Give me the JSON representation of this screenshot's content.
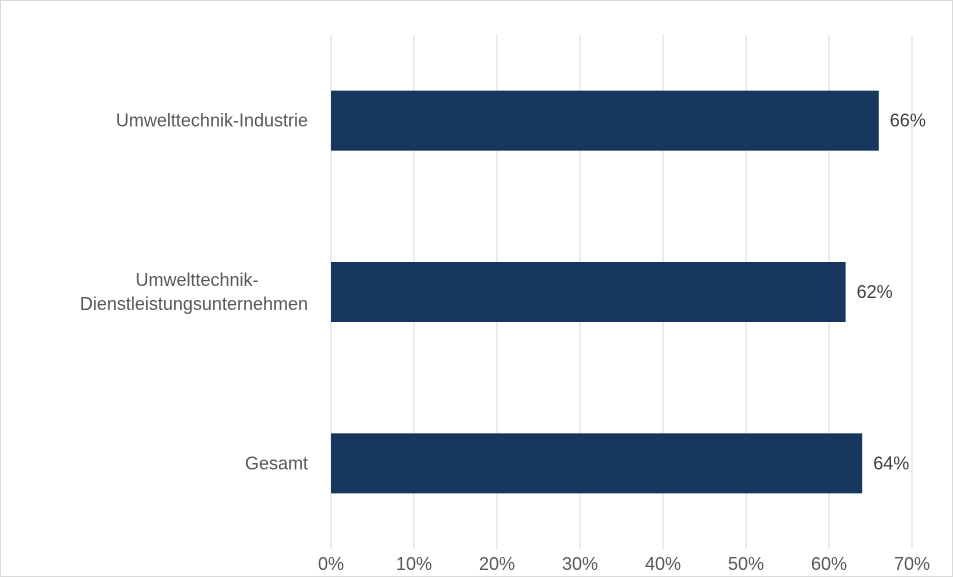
{
  "chart_data": {
    "type": "bar",
    "orientation": "horizontal",
    "categories": [
      "Umwelttechnik-Industrie",
      "Umwelttechnik-Dienstleistungsunternehmen",
      "Gesamt"
    ],
    "category_lines": [
      [
        "Umwelttechnik-Industrie"
      ],
      [
        "Umwelttechnik-",
        "Dienstleistungsunternehmen"
      ],
      [
        "Gesamt"
      ]
    ],
    "values": [
      66,
      62,
      64
    ],
    "data_labels": [
      "66%",
      "62%",
      "64%"
    ],
    "xticks": [
      "0%",
      "10%",
      "20%",
      "30%",
      "40%",
      "50%",
      "60%",
      "70%"
    ],
    "xlim": [
      0,
      70
    ],
    "title": "",
    "xlabel": "",
    "ylabel": "",
    "grid": "vertical",
    "legend": "none",
    "bar_color": "#17375e",
    "grid_color": "#d9d9d9",
    "text_color": "#595959"
  }
}
